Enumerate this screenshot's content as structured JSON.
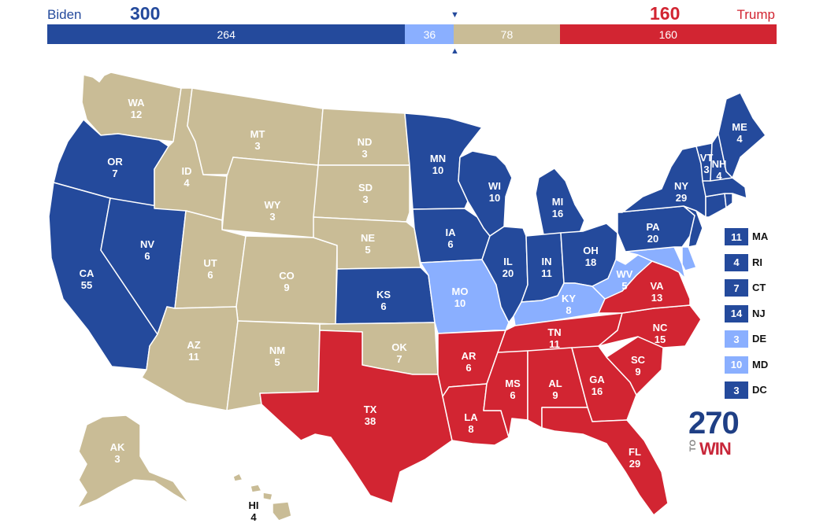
{
  "header": {
    "dem_name": "Biden",
    "dem_votes": "300",
    "rep_name": "Trump",
    "rep_votes": "160",
    "marker_top": "▼",
    "marker_bottom": "▲"
  },
  "bar": [
    {
      "label": "264",
      "value": 264,
      "color": "#244a9c"
    },
    {
      "label": "36",
      "value": 36,
      "color": "#8aafff"
    },
    {
      "label": "78",
      "value": 78,
      "color": "#c9bc96"
    },
    {
      "label": "160",
      "value": 160,
      "color": "#d22532"
    }
  ],
  "colors": {
    "safe_dem": "#244a9c",
    "lean_dem": "#8aafff",
    "tossup": "#c9bc96",
    "safe_rep": "#d22532",
    "state_label": "#ffffff",
    "state_border": "#ffffff"
  },
  "states": [
    {
      "abbr": "WA",
      "ev": "12",
      "status": "tossup"
    },
    {
      "abbr": "OR",
      "ev": "7",
      "status": "safe_dem"
    },
    {
      "abbr": "CA",
      "ev": "55",
      "status": "safe_dem"
    },
    {
      "abbr": "NV",
      "ev": "6",
      "status": "safe_dem"
    },
    {
      "abbr": "ID",
      "ev": "4",
      "status": "tossup"
    },
    {
      "abbr": "MT",
      "ev": "3",
      "status": "tossup"
    },
    {
      "abbr": "WY",
      "ev": "3",
      "status": "tossup"
    },
    {
      "abbr": "UT",
      "ev": "6",
      "status": "tossup"
    },
    {
      "abbr": "CO",
      "ev": "9",
      "status": "tossup"
    },
    {
      "abbr": "AZ",
      "ev": "11",
      "status": "tossup"
    },
    {
      "abbr": "NM",
      "ev": "5",
      "status": "tossup"
    },
    {
      "abbr": "ND",
      "ev": "3",
      "status": "tossup"
    },
    {
      "abbr": "SD",
      "ev": "3",
      "status": "tossup"
    },
    {
      "abbr": "NE",
      "ev": "5",
      "status": "tossup"
    },
    {
      "abbr": "KS",
      "ev": "6",
      "status": "safe_dem"
    },
    {
      "abbr": "OK",
      "ev": "7",
      "status": "tossup"
    },
    {
      "abbr": "TX",
      "ev": "38",
      "status": "safe_rep"
    },
    {
      "abbr": "MN",
      "ev": "10",
      "status": "safe_dem"
    },
    {
      "abbr": "IA",
      "ev": "6",
      "status": "safe_dem"
    },
    {
      "abbr": "MO",
      "ev": "10",
      "status": "lean_dem"
    },
    {
      "abbr": "AR",
      "ev": "6",
      "status": "safe_rep"
    },
    {
      "abbr": "LA",
      "ev": "8",
      "status": "safe_rep"
    },
    {
      "abbr": "WI",
      "ev": "10",
      "status": "safe_dem"
    },
    {
      "abbr": "IL",
      "ev": "20",
      "status": "safe_dem"
    },
    {
      "abbr": "MI",
      "ev": "16",
      "status": "safe_dem"
    },
    {
      "abbr": "IN",
      "ev": "11",
      "status": "safe_dem"
    },
    {
      "abbr": "OH",
      "ev": "18",
      "status": "safe_dem"
    },
    {
      "abbr": "KY",
      "ev": "8",
      "status": "lean_dem"
    },
    {
      "abbr": "TN",
      "ev": "11",
      "status": "safe_rep"
    },
    {
      "abbr": "MS",
      "ev": "6",
      "status": "safe_rep"
    },
    {
      "abbr": "AL",
      "ev": "9",
      "status": "safe_rep"
    },
    {
      "abbr": "GA",
      "ev": "16",
      "status": "safe_rep"
    },
    {
      "abbr": "FL",
      "ev": "29",
      "status": "safe_rep"
    },
    {
      "abbr": "SC",
      "ev": "9",
      "status": "safe_rep"
    },
    {
      "abbr": "NC",
      "ev": "15",
      "status": "safe_rep"
    },
    {
      "abbr": "VA",
      "ev": "13",
      "status": "safe_rep"
    },
    {
      "abbr": "WV",
      "ev": "5",
      "status": "lean_dem"
    },
    {
      "abbr": "PA",
      "ev": "20",
      "status": "safe_dem"
    },
    {
      "abbr": "NY",
      "ev": "29",
      "status": "safe_dem"
    },
    {
      "abbr": "VT",
      "ev": "3",
      "status": "safe_dem"
    },
    {
      "abbr": "NH",
      "ev": "4",
      "status": "safe_dem"
    },
    {
      "abbr": "ME",
      "ev": "4",
      "status": "safe_dem"
    },
    {
      "abbr": "AK",
      "ev": "3",
      "status": "tossup"
    },
    {
      "abbr": "HI",
      "ev": "4",
      "status": "tossup"
    }
  ],
  "small_states": [
    {
      "abbr": "MA",
      "ev": "11",
      "status": "safe_dem"
    },
    {
      "abbr": "RI",
      "ev": "4",
      "status": "safe_dem"
    },
    {
      "abbr": "CT",
      "ev": "7",
      "status": "safe_dem"
    },
    {
      "abbr": "NJ",
      "ev": "14",
      "status": "safe_dem"
    },
    {
      "abbr": "DE",
      "ev": "3",
      "status": "lean_dem"
    },
    {
      "abbr": "MD",
      "ev": "10",
      "status": "lean_dem"
    },
    {
      "abbr": "DC",
      "ev": "3",
      "status": "safe_dem"
    }
  ],
  "logo": {
    "number": "270",
    "to": "TO",
    "win": "WIN"
  }
}
